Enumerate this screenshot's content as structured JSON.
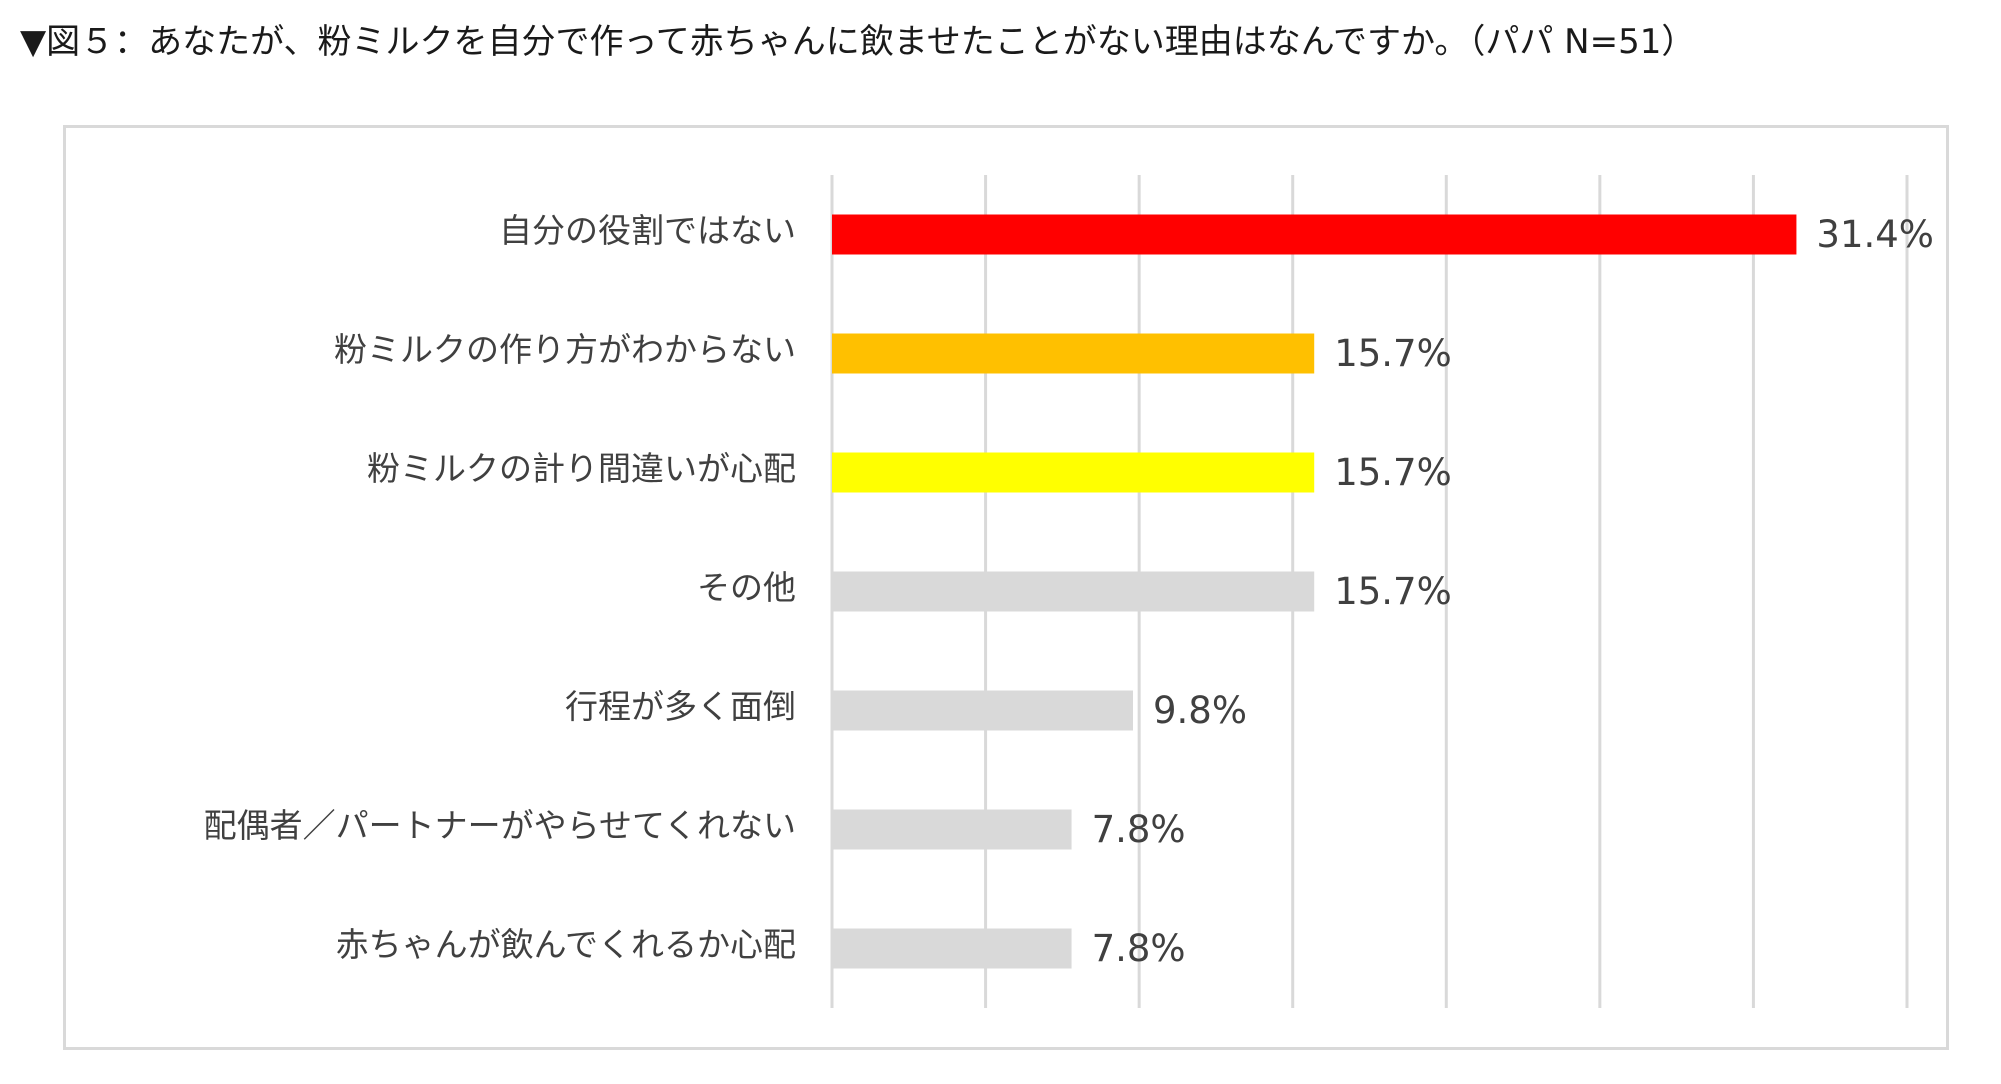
{
  "title": "▼図５：あなたが、粉ミルクを自分で作って赤ちゃんに飲ませたことがない理由はなんですか。（パパ N=51）",
  "chart_data": {
    "type": "bar",
    "orientation": "horizontal",
    "categories": [
      "自分の役割ではない",
      "粉ミルクの作り方がわからない",
      "粉ミルクの計り間違いが心配",
      "その他",
      "行程が多く面倒",
      "配偶者／パートナーがやらせてくれない",
      "赤ちゃんが飲んでくれるか心配"
    ],
    "values": [
      31.4,
      15.7,
      15.7,
      15.7,
      9.8,
      7.8,
      7.8
    ],
    "value_labels": [
      "31.4%",
      "15.7%",
      "15.7%",
      "15.7%",
      "9.8%",
      "7.8%",
      "7.8%"
    ],
    "colors": [
      "#ff0000",
      "#ffc000",
      "#ffff00",
      "#d9d9d9",
      "#d9d9d9",
      "#d9d9d9",
      "#d9d9d9"
    ],
    "xlim": [
      0,
      35
    ],
    "grid": true,
    "grid_color": "#d9d9d9",
    "legend": "none"
  }
}
